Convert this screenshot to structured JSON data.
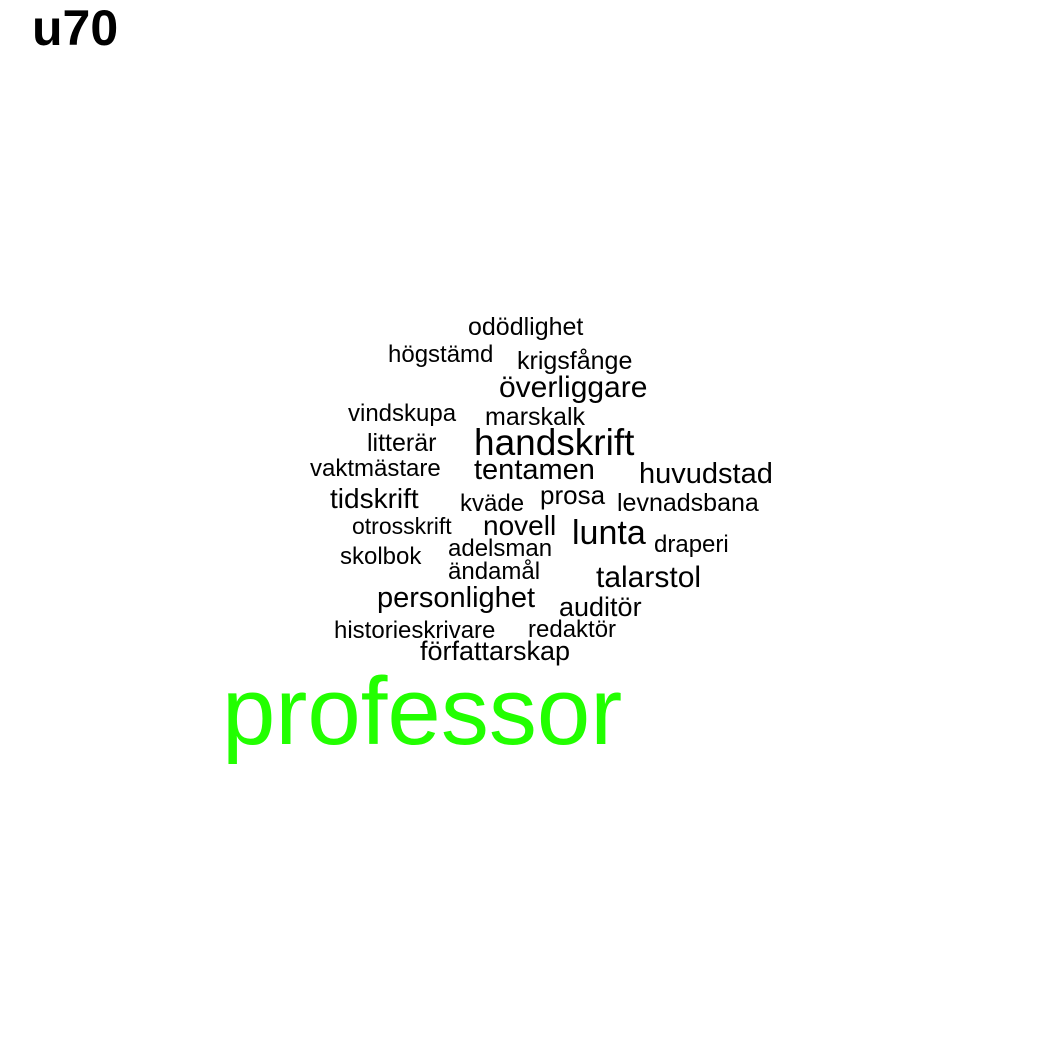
{
  "title": "u70",
  "colors": {
    "highlight": "#22ff00",
    "default": "#000000",
    "background": "#ffffff"
  },
  "cloud": {
    "hero": "professor",
    "words": [
      "odödlighet",
      "högstämd",
      "krigsfånge",
      "överliggare",
      "vindskupa",
      "marskalk",
      "handskrift",
      "litterär",
      "vaktmästare",
      "tentamen",
      "huvudstad",
      "tidskrift",
      "prosa",
      "kväde",
      "levnadsbana",
      "otrosskrift",
      "novell",
      "lunta",
      "adelsman",
      "draperi",
      "skolbok",
      "ändamål",
      "talarstol",
      "personlighet",
      "auditör",
      "historieskrivare",
      "redaktör",
      "författarskap"
    ]
  }
}
